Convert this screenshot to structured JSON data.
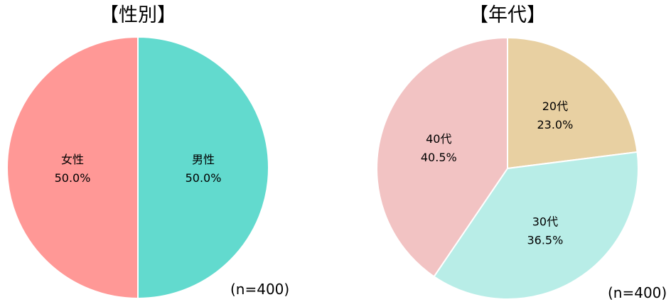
{
  "chart_data": [
    {
      "type": "pie",
      "title": "【性別】",
      "note": "(n=400)",
      "slices": [
        {
          "label": "男性",
          "value": 50.0,
          "value_label": "50.0%",
          "color": "#62DACE"
        },
        {
          "label": "女性",
          "value": 50.0,
          "value_label": "50.0%",
          "color": "#FF9896"
        }
      ]
    },
    {
      "type": "pie",
      "title": "【年代】",
      "note": "(n=400)",
      "slices": [
        {
          "label": "20代",
          "value": 23.0,
          "value_label": "23.0%",
          "color": "#E8D0A2"
        },
        {
          "label": "30代",
          "value": 36.5,
          "value_label": "36.5%",
          "color": "#B8EDE7"
        },
        {
          "label": "40代",
          "value": 40.5,
          "value_label": "40.5%",
          "color": "#F2C3C3"
        }
      ]
    }
  ]
}
